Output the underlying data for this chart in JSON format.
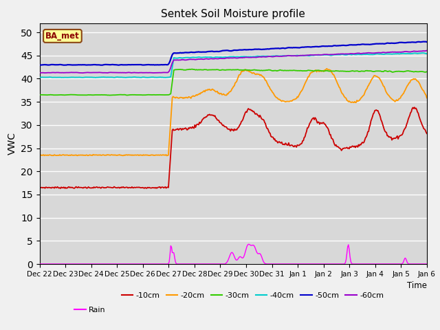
{
  "title": "Sentek Soil Moisture profile",
  "xlabel": "Time",
  "ylabel": "VWC",
  "ylim": [
    0,
    52
  ],
  "yticks": [
    0,
    5,
    10,
    15,
    20,
    25,
    30,
    35,
    40,
    45,
    50
  ],
  "plot_bg_color": "#d8d8d8",
  "fig_bg_color": "#f0f0f0",
  "annotation_text": "BA_met",
  "colors": {
    "-10cm": "#cc0000",
    "-20cm": "#ff9900",
    "-30cm": "#33cc00",
    "-40cm": "#00cccc",
    "-50cm": "#0000cc",
    "-60cm": "#9900cc",
    "Rain": "#ff00ff"
  },
  "n_points": 500,
  "date_labels": [
    "Dec 22",
    "Dec 23",
    "Dec 24",
    "Dec 25",
    "Dec 26",
    "Dec 27",
    "Dec 28",
    "Dec 29",
    "Dec 30",
    "Dec 31",
    "Jan 1",
    "Jan 2",
    "Jan 3",
    "Jan 4",
    "Jan 5",
    "Jan 6"
  ],
  "figsize": [
    6.4,
    4.8
  ],
  "dpi": 100
}
